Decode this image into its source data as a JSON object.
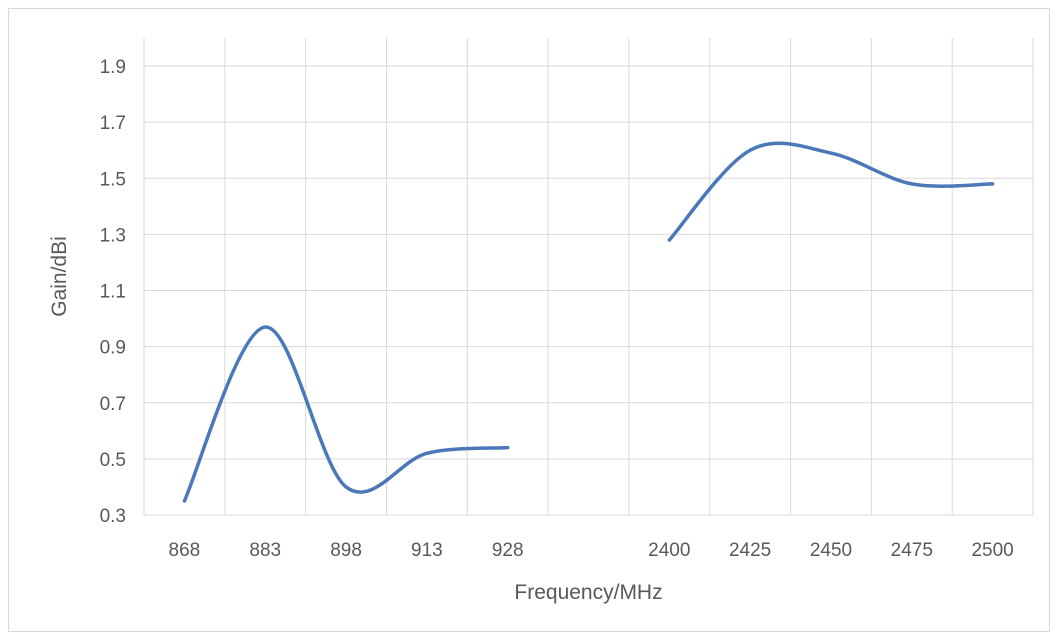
{
  "chart_data": {
    "type": "line",
    "title": "",
    "xlabel": "Frequency/MHz",
    "ylabel": "Gain/dBi",
    "categories": [
      "868",
      "883",
      "898",
      "913",
      "928",
      "",
      "2400",
      "2425",
      "2450",
      "2475",
      "2500"
    ],
    "ylim": [
      0.3,
      2.0
    ],
    "yticks": [
      "0.3",
      "0.5",
      "0.7",
      "0.9",
      "1.1",
      "1.3",
      "1.5",
      "1.7",
      "1.9"
    ],
    "grid": true,
    "smooth": true,
    "series": [
      {
        "values": [
          0.35,
          0.97,
          0.4,
          0.52,
          0.54,
          null,
          1.28,
          1.6,
          1.59,
          1.48,
          1.48
        ]
      }
    ],
    "colors": {
      "series": "#4a78b8",
      "grid": "#d9d9d9",
      "text": "#595959"
    }
  }
}
